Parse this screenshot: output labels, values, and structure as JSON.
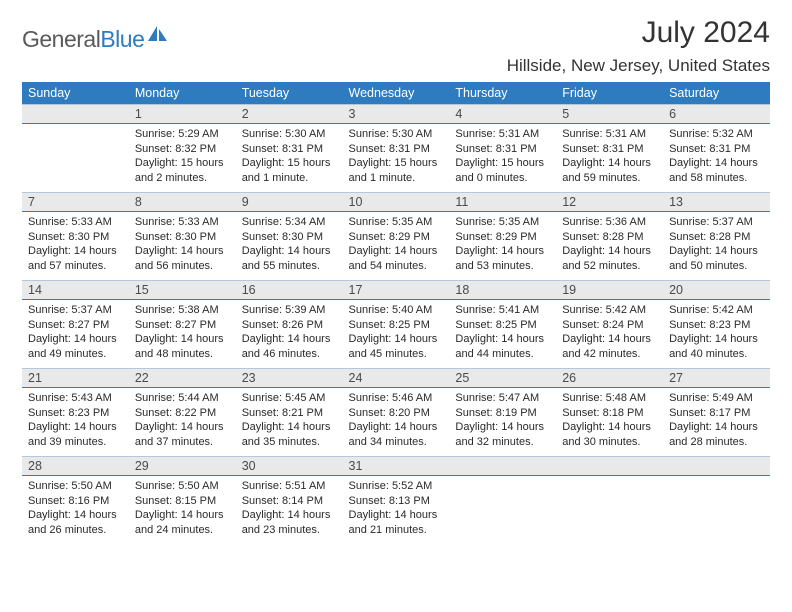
{
  "brand": {
    "word1": "General",
    "word2": "Blue"
  },
  "title": {
    "month": "July 2024",
    "location": "Hillside, New Jersey, United States"
  },
  "weekdays": [
    "Sunday",
    "Monday",
    "Tuesday",
    "Wednesday",
    "Thursday",
    "Friday",
    "Saturday"
  ],
  "style": {
    "accent": "#2e7bc0",
    "dnum_bg": "#e9e9e9",
    "dnum_border_top": "#b3c8dd",
    "header_text": "#ffffff",
    "body_font_size": 11,
    "header_font_size": 12.5
  },
  "labels": {
    "sunrise": "Sunrise:",
    "sunset": "Sunset:",
    "daylight": "Daylight:"
  },
  "weeks": [
    [
      {
        "n": "",
        "blank": true
      },
      {
        "n": "1",
        "sunrise": "5:29 AM",
        "sunset": "8:32 PM",
        "daylight": "15 hours and 2 minutes."
      },
      {
        "n": "2",
        "sunrise": "5:30 AM",
        "sunset": "8:31 PM",
        "daylight": "15 hours and 1 minute."
      },
      {
        "n": "3",
        "sunrise": "5:30 AM",
        "sunset": "8:31 PM",
        "daylight": "15 hours and 1 minute."
      },
      {
        "n": "4",
        "sunrise": "5:31 AM",
        "sunset": "8:31 PM",
        "daylight": "15 hours and 0 minutes."
      },
      {
        "n": "5",
        "sunrise": "5:31 AM",
        "sunset": "8:31 PM",
        "daylight": "14 hours and 59 minutes."
      },
      {
        "n": "6",
        "sunrise": "5:32 AM",
        "sunset": "8:31 PM",
        "daylight": "14 hours and 58 minutes."
      }
    ],
    [
      {
        "n": "7",
        "sunrise": "5:33 AM",
        "sunset": "8:30 PM",
        "daylight": "14 hours and 57 minutes."
      },
      {
        "n": "8",
        "sunrise": "5:33 AM",
        "sunset": "8:30 PM",
        "daylight": "14 hours and 56 minutes."
      },
      {
        "n": "9",
        "sunrise": "5:34 AM",
        "sunset": "8:30 PM",
        "daylight": "14 hours and 55 minutes."
      },
      {
        "n": "10",
        "sunrise": "5:35 AM",
        "sunset": "8:29 PM",
        "daylight": "14 hours and 54 minutes."
      },
      {
        "n": "11",
        "sunrise": "5:35 AM",
        "sunset": "8:29 PM",
        "daylight": "14 hours and 53 minutes."
      },
      {
        "n": "12",
        "sunrise": "5:36 AM",
        "sunset": "8:28 PM",
        "daylight": "14 hours and 52 minutes."
      },
      {
        "n": "13",
        "sunrise": "5:37 AM",
        "sunset": "8:28 PM",
        "daylight": "14 hours and 50 minutes."
      }
    ],
    [
      {
        "n": "14",
        "sunrise": "5:37 AM",
        "sunset": "8:27 PM",
        "daylight": "14 hours and 49 minutes."
      },
      {
        "n": "15",
        "sunrise": "5:38 AM",
        "sunset": "8:27 PM",
        "daylight": "14 hours and 48 minutes."
      },
      {
        "n": "16",
        "sunrise": "5:39 AM",
        "sunset": "8:26 PM",
        "daylight": "14 hours and 46 minutes."
      },
      {
        "n": "17",
        "sunrise": "5:40 AM",
        "sunset": "8:25 PM",
        "daylight": "14 hours and 45 minutes."
      },
      {
        "n": "18",
        "sunrise": "5:41 AM",
        "sunset": "8:25 PM",
        "daylight": "14 hours and 44 minutes."
      },
      {
        "n": "19",
        "sunrise": "5:42 AM",
        "sunset": "8:24 PM",
        "daylight": "14 hours and 42 minutes."
      },
      {
        "n": "20",
        "sunrise": "5:42 AM",
        "sunset": "8:23 PM",
        "daylight": "14 hours and 40 minutes."
      }
    ],
    [
      {
        "n": "21",
        "sunrise": "5:43 AM",
        "sunset": "8:23 PM",
        "daylight": "14 hours and 39 minutes."
      },
      {
        "n": "22",
        "sunrise": "5:44 AM",
        "sunset": "8:22 PM",
        "daylight": "14 hours and 37 minutes."
      },
      {
        "n": "23",
        "sunrise": "5:45 AM",
        "sunset": "8:21 PM",
        "daylight": "14 hours and 35 minutes."
      },
      {
        "n": "24",
        "sunrise": "5:46 AM",
        "sunset": "8:20 PM",
        "daylight": "14 hours and 34 minutes."
      },
      {
        "n": "25",
        "sunrise": "5:47 AM",
        "sunset": "8:19 PM",
        "daylight": "14 hours and 32 minutes."
      },
      {
        "n": "26",
        "sunrise": "5:48 AM",
        "sunset": "8:18 PM",
        "daylight": "14 hours and 30 minutes."
      },
      {
        "n": "27",
        "sunrise": "5:49 AM",
        "sunset": "8:17 PM",
        "daylight": "14 hours and 28 minutes."
      }
    ],
    [
      {
        "n": "28",
        "sunrise": "5:50 AM",
        "sunset": "8:16 PM",
        "daylight": "14 hours and 26 minutes."
      },
      {
        "n": "29",
        "sunrise": "5:50 AM",
        "sunset": "8:15 PM",
        "daylight": "14 hours and 24 minutes."
      },
      {
        "n": "30",
        "sunrise": "5:51 AM",
        "sunset": "8:14 PM",
        "daylight": "14 hours and 23 minutes."
      },
      {
        "n": "31",
        "sunrise": "5:52 AM",
        "sunset": "8:13 PM",
        "daylight": "14 hours and 21 minutes."
      },
      {
        "n": "",
        "blank": true
      },
      {
        "n": "",
        "blank": true
      },
      {
        "n": "",
        "blank": true
      }
    ]
  ]
}
